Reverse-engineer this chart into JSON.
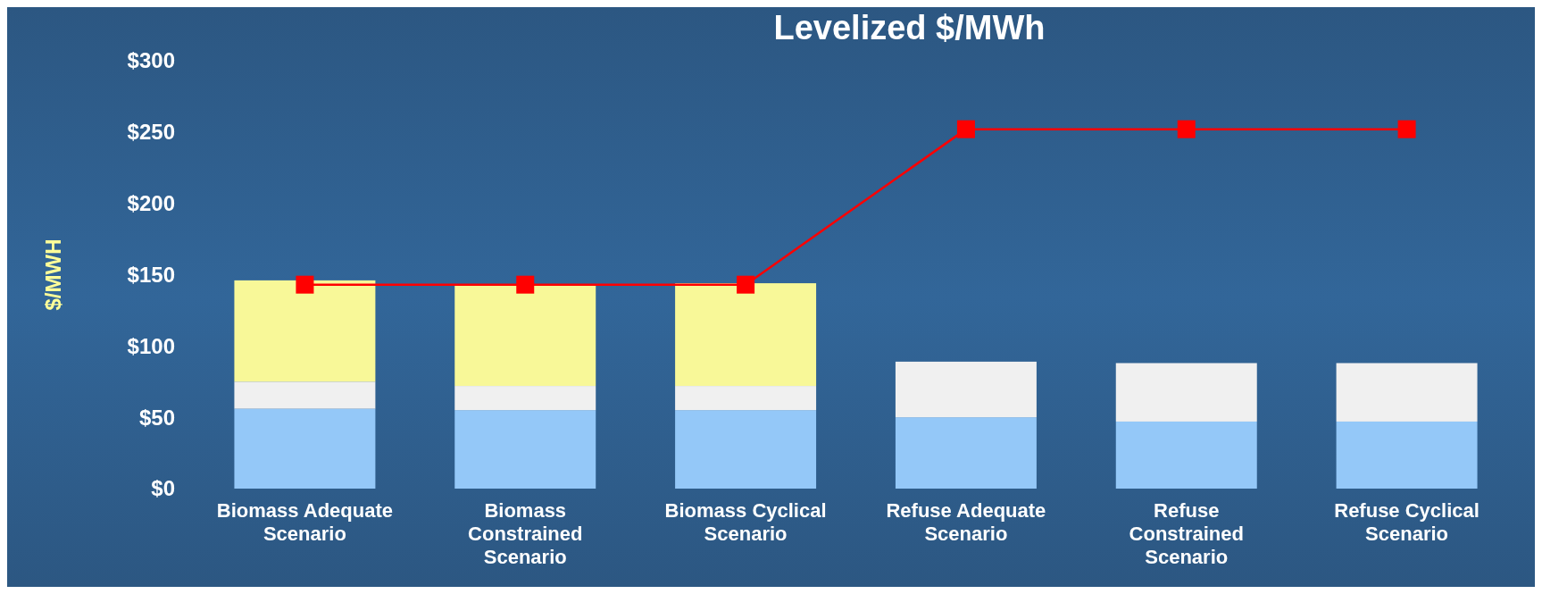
{
  "chart_data": {
    "type": "bar",
    "title": "Levelized $/MWh",
    "ylabel": "$/MWH",
    "stacked": true,
    "categories": [
      "Biomass Adequate Scenario",
      "Biomass Constrained Scenario",
      "Biomass Cyclical Scenario",
      "Refuse Adequate Scenario",
      "Refuse Constrained Scenario",
      "Refuse Cyclical Scenario"
    ],
    "series": [
      {
        "color": "#94c8f8",
        "values": [
          56,
          55,
          55,
          50,
          47,
          47
        ]
      },
      {
        "color": "#f0f0f0",
        "values": [
          19,
          17,
          17,
          39,
          41,
          41
        ]
      },
      {
        "color": "#f8f898",
        "values": [
          71,
          71,
          72,
          null,
          null,
          null
        ]
      },
      {
        "type": "line",
        "color": "#ff0000",
        "marker": "square",
        "values": [
          143,
          143,
          143,
          252,
          252,
          252
        ]
      }
    ],
    "ylim": [
      0,
      300
    ],
    "yticks": [
      {
        "value": 0,
        "label": "$0"
      },
      {
        "value": 50,
        "label": "$50"
      },
      {
        "value": 100,
        "label": "$100"
      },
      {
        "value": 150,
        "label": "$150"
      },
      {
        "value": 200,
        "label": "$200"
      },
      {
        "value": 250,
        "label": "$250"
      },
      {
        "value": 300,
        "label": "$300"
      }
    ],
    "line_style": "solid"
  }
}
